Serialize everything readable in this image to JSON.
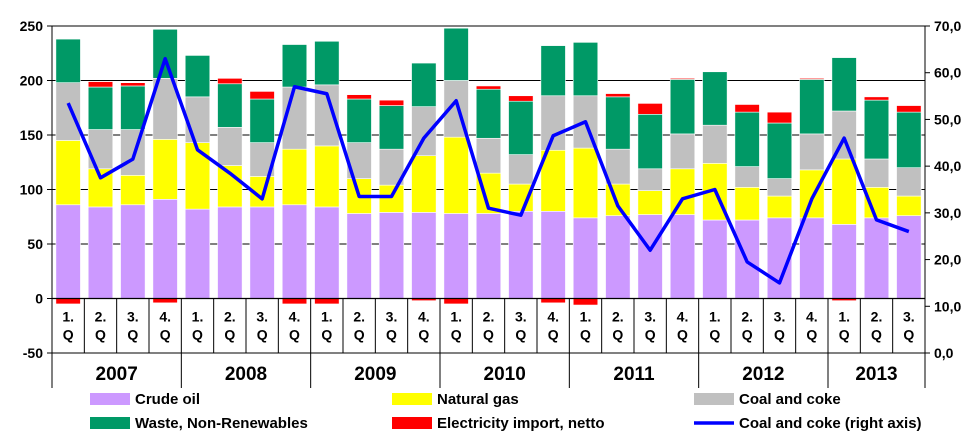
{
  "chart_data": {
    "type": "bar",
    "stacked": true,
    "categories": [
      "2007 1.Q",
      "2007 2.Q",
      "2007 3.Q",
      "2007 4.Q",
      "2008 1.Q",
      "2008 2.Q",
      "2008 3.Q",
      "2008 4.Q",
      "2009 1.Q",
      "2009 2.Q",
      "2009 3.Q",
      "2009 4.Q",
      "2010 1.Q",
      "2010 2.Q",
      "2010 3.Q",
      "2010 4.Q",
      "2011 1.Q",
      "2011 2.Q",
      "2011 3.Q",
      "2011 4.Q",
      "2012 1.Q",
      "2012 2.Q",
      "2012 3.Q",
      "2012 4.Q",
      "2013 1.Q",
      "2013 2.Q",
      "2013 3.Q"
    ],
    "quarter_labels": [
      [
        "1.",
        "Q"
      ],
      [
        "2.",
        "Q"
      ],
      [
        "3.",
        "Q"
      ],
      [
        "4.",
        "Q"
      ],
      [
        "1.",
        "Q"
      ],
      [
        "2.",
        "Q"
      ],
      [
        "3.",
        "Q"
      ],
      [
        "4.",
        "Q"
      ],
      [
        "1.",
        "Q"
      ],
      [
        "2.",
        "Q"
      ],
      [
        "3.",
        "Q"
      ],
      [
        "4.",
        "Q"
      ],
      [
        "1.",
        "Q"
      ],
      [
        "2.",
        "Q"
      ],
      [
        "3.",
        "Q"
      ],
      [
        "4.",
        "Q"
      ],
      [
        "1.",
        "Q"
      ],
      [
        "2.",
        "Q"
      ],
      [
        "3.",
        "Q"
      ],
      [
        "4.",
        "Q"
      ],
      [
        "1.",
        "Q"
      ],
      [
        "2.",
        "Q"
      ],
      [
        "3.",
        "Q"
      ],
      [
        "4.",
        "Q"
      ],
      [
        "1.",
        "Q"
      ],
      [
        "2.",
        "Q"
      ],
      [
        "3.",
        "Q"
      ]
    ],
    "years": [
      {
        "label": "2007",
        "start": 0,
        "end": 3
      },
      {
        "label": "2008",
        "start": 4,
        "end": 7
      },
      {
        "label": "2009",
        "start": 8,
        "end": 11
      },
      {
        "label": "2010",
        "start": 12,
        "end": 15
      },
      {
        "label": "2011",
        "start": 16,
        "end": 19
      },
      {
        "label": "2012",
        "start": 20,
        "end": 23
      },
      {
        "label": "2013",
        "start": 24,
        "end": 26
      }
    ],
    "ylim_left": [
      -50,
      250
    ],
    "yticks_left": [
      "-50",
      "0",
      "50",
      "100",
      "150",
      "200",
      "250"
    ],
    "ylim_right": [
      0,
      70
    ],
    "yticks_right": [
      "0,0",
      "10,0",
      "20,0",
      "30,0",
      "40,0",
      "50,0",
      "60,0",
      "70,0"
    ],
    "grid": "horizontal",
    "legend_position": "bottom",
    "series": [
      {
        "name": "Crude oil",
        "color": "#cc99ff",
        "axis": "left",
        "values": [
          86,
          84,
          86,
          91,
          82,
          84,
          84,
          86,
          84,
          78,
          79,
          79,
          78,
          78,
          80,
          80,
          74,
          76,
          77,
          77,
          72,
          72,
          74,
          74,
          68,
          74,
          76
        ]
      },
      {
        "name": "Natural gas",
        "color": "#ffff00",
        "axis": "left",
        "values": [
          59,
          35,
          27,
          55,
          61,
          38,
          28,
          51,
          56,
          32,
          25,
          52,
          70,
          37,
          25,
          56,
          64,
          29,
          22,
          42,
          52,
          30,
          20,
          44,
          60,
          28,
          18
        ]
      },
      {
        "name": "Coal and coke",
        "color": "#c0c0c0",
        "axis": "left",
        "values": [
          53,
          36,
          42,
          56,
          42,
          35,
          31,
          57,
          56,
          33,
          33,
          45,
          52,
          32,
          27,
          50,
          48,
          32,
          20,
          32,
          35,
          19,
          16,
          33,
          44,
          26,
          26
        ]
      },
      {
        "name": "Waste, Non-Renewables",
        "color": "#009966",
        "axis": "left",
        "values": [
          40,
          39,
          40,
          45,
          38,
          40,
          40,
          39,
          40,
          40,
          40,
          40,
          48,
          45,
          49,
          46,
          49,
          48,
          50,
          50,
          49,
          50,
          51,
          50,
          49,
          54,
          51
        ]
      },
      {
        "name": "Electricity import, netto",
        "color": "#ff0000",
        "axis": "left",
        "values": [
          -5,
          5,
          3,
          -4,
          0,
          5,
          7,
          -5,
          -5,
          4,
          5,
          -2,
          -5,
          3,
          5,
          -4,
          -6,
          3,
          10,
          1,
          0,
          7,
          10,
          1,
          -2,
          3,
          6
        ]
      },
      {
        "name": "Coal and coke (right axis)",
        "color": "#0000ff",
        "axis": "right",
        "type": "line",
        "values": [
          53.5,
          37.5,
          41.5,
          63,
          43.5,
          38.5,
          33,
          57,
          55.5,
          33.5,
          33.5,
          46,
          54,
          31,
          29.5,
          46.5,
          49.5,
          31.5,
          22,
          33,
          35,
          19.5,
          15,
          33,
          46,
          28.5,
          26
        ]
      }
    ]
  }
}
